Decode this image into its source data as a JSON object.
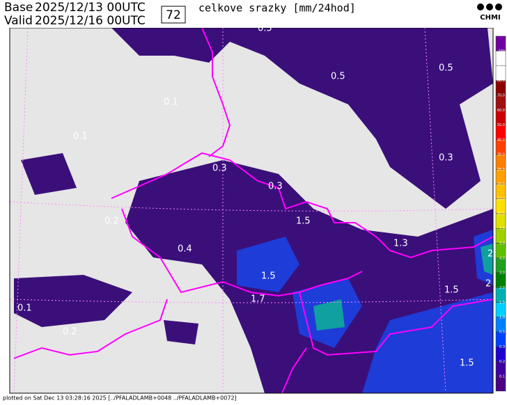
{
  "header": {
    "base_label": "Base",
    "base_date": "2025/12/13 00UTC",
    "valid_label": "Valid",
    "valid_date": "2025/12/16 00UTC",
    "lead": "72",
    "title": "celkove srazky [mm/24hod]",
    "logo": "CHMI"
  },
  "map_labels": [
    "0.5",
    "0.5",
    "0.1",
    "0.1",
    "0.3",
    "0.3",
    "0.3",
    "0.5",
    "0.2",
    "1.5",
    "0.4",
    "1.5",
    "1.7",
    "1.3",
    "1.5",
    "0.1",
    "0.2",
    "1.5",
    "2",
    "2"
  ],
  "colorbar": {
    "colors": [
      "#7000a0",
      "#ffffff",
      "#ffffff",
      "#8b0000",
      "#a01010",
      "#cc0000",
      "#ff0000",
      "#ff4000",
      "#ff8000",
      "#ffa000",
      "#ffc000",
      "#ffe000",
      "#e0e000",
      "#a0d000",
      "#60c000",
      "#20a020",
      "#008000",
      "#00b0b0",
      "#00d0ff",
      "#0080ff",
      "#0040ff",
      "#2000d0",
      "#4000a0",
      "#4b0082"
    ],
    "labels": [
      "100",
      "90.0",
      "80.0",
      "70.0",
      "60.0",
      "50.0",
      "40.0",
      "30.0",
      "25.0",
      "20.0",
      "15.0",
      "10.0",
      "7.0",
      "5.0",
      "4.0",
      "3.0",
      "2.0",
      "1.5",
      "1.0",
      "0.5",
      "0.3",
      "0.2",
      "0.1"
    ]
  },
  "footer": "plotted on Sat Dec 13 03:28:16 2025 [../PFALADLAMB+0048 ../PFALADLAMB+0072]"
}
